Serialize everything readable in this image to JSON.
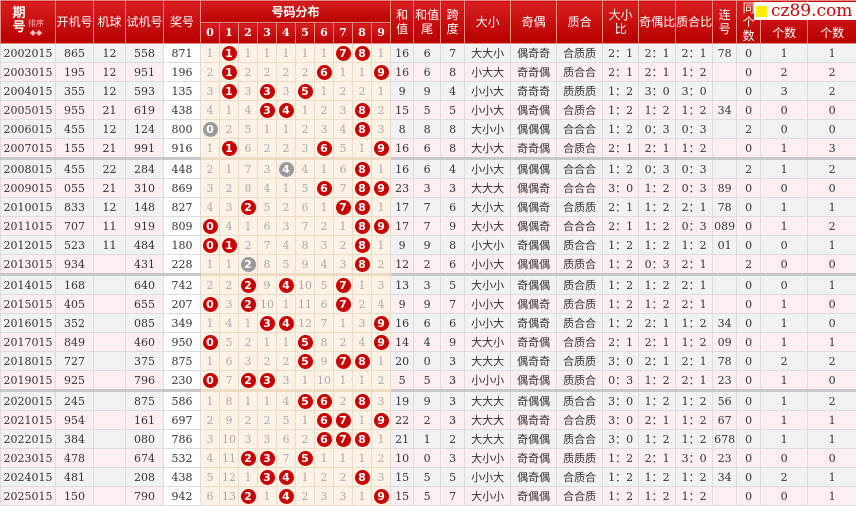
{
  "header": {
    "period": "期号",
    "sort": "排序",
    "kaiji": "开机号",
    "jiqiu": "机球",
    "shiji": "试机号",
    "jiang": "奖号",
    "dist": "号码分布",
    "digits": [
      "0",
      "1",
      "2",
      "3",
      "4",
      "5",
      "6",
      "7",
      "8",
      "9"
    ],
    "sum": "和值",
    "tail": "和值尾",
    "span": "跨度",
    "dx": "大小",
    "jo": "奇偶",
    "zh": "质合",
    "dxb": "大小比",
    "job": "奇偶比",
    "zhb": "质合比",
    "lian": "连号",
    "tong": "同",
    "count": "个数",
    "count2": "个数",
    "count3": "个数"
  },
  "logo": "cz89.com",
  "colors": {
    "header": "#c00000",
    "hit": "#c80000",
    "repeat": "#9a9a9a"
  },
  "rows": [
    {
      "p": "2002015",
      "k": "865",
      "q": "12",
      "s": "558",
      "j": "871",
      "d": [
        "1",
        "H",
        "1",
        "1",
        "1",
        "1",
        "1",
        "H",
        "H",
        "1"
      ],
      "v": [
        "16",
        "6",
        "7",
        "大大小",
        "偶奇奇",
        "合质质",
        "2：1",
        "2：1",
        "2：1",
        "78",
        "0",
        "1",
        "1"
      ]
    },
    {
      "p": "2003015",
      "k": "195",
      "q": "12",
      "s": "951",
      "j": "196",
      "d": [
        "2",
        "H",
        "2",
        "2",
        "2",
        "2",
        "H",
        "1",
        "1",
        "H"
      ],
      "v": [
        "16",
        "6",
        "8",
        "小大大",
        "奇奇偶",
        "质合合",
        "2：1",
        "2：1",
        "1：2",
        "",
        "0",
        "2",
        "2"
      ]
    },
    {
      "p": "2004015",
      "k": "355",
      "q": "12",
      "s": "593",
      "j": "135",
      "d": [
        "3",
        "H",
        "3",
        "H",
        "3",
        "H",
        "1",
        "2",
        "2",
        "1"
      ],
      "v": [
        "9",
        "9",
        "4",
        "小小大",
        "奇奇奇",
        "质质质",
        "1：2",
        "3：0",
        "3：0",
        "",
        "0",
        "3",
        "2"
      ]
    },
    {
      "p": "2005015",
      "k": "955",
      "q": "21",
      "s": "619",
      "j": "438",
      "d": [
        "4",
        "1",
        "4",
        "H",
        "H",
        "1",
        "2",
        "3",
        "H",
        "2"
      ],
      "v": [
        "15",
        "5",
        "5",
        "小小大",
        "偶奇偶",
        "合质合",
        "1：2",
        "1：2",
        "1：2",
        "34",
        "0",
        "0",
        "0"
      ]
    },
    {
      "p": "2006015",
      "k": "455",
      "q": "12",
      "s": "124",
      "j": "800",
      "d": [
        "G",
        "2",
        "5",
        "1",
        "1",
        "2",
        "3",
        "4",
        "H",
        "3"
      ],
      "v": [
        "8",
        "8",
        "8",
        "大小小",
        "偶偶偶",
        "合合合",
        "1：2",
        "0：3",
        "0：3",
        "",
        "2",
        "0",
        "0"
      ]
    },
    {
      "p": "2007015",
      "k": "155",
      "q": "21",
      "s": "991",
      "j": "916",
      "d": [
        "1",
        "H",
        "6",
        "2",
        "2",
        "3",
        "H",
        "5",
        "1",
        "H"
      ],
      "v": [
        "16",
        "6",
        "8",
        "大小大",
        "奇奇偶",
        "合质合",
        "2：1",
        "2：1",
        "1：2",
        "",
        "0",
        "1",
        "3"
      ]
    },
    {
      "p": "2008015",
      "k": "455",
      "q": "22",
      "s": "284",
      "j": "448",
      "d": [
        "2",
        "1",
        "7",
        "3",
        "G",
        "4",
        "1",
        "6",
        "H",
        "1"
      ],
      "v": [
        "16",
        "6",
        "4",
        "小小大",
        "偶偶偶",
        "合合合",
        "1：2",
        "0：3",
        "0：3",
        "",
        "2",
        "1",
        "2"
      ]
    },
    {
      "p": "2009015",
      "k": "055",
      "q": "21",
      "s": "310",
      "j": "869",
      "d": [
        "3",
        "2",
        "8",
        "4",
        "1",
        "5",
        "H",
        "7",
        "H",
        "H"
      ],
      "v": [
        "23",
        "3",
        "3",
        "大大大",
        "偶偶奇",
        "合合合",
        "3：0",
        "1：2",
        "0：3",
        "89",
        "0",
        "0",
        "0"
      ]
    },
    {
      "p": "2010015",
      "k": "833",
      "q": "12",
      "s": "148",
      "j": "827",
      "d": [
        "4",
        "3",
        "H",
        "5",
        "2",
        "6",
        "1",
        "H",
        "H",
        "1"
      ],
      "v": [
        "17",
        "7",
        "6",
        "大小大",
        "偶偶奇",
        "合质质",
        "2：1",
        "1：2",
        "2：1",
        "78",
        "0",
        "1",
        "1"
      ]
    },
    {
      "p": "2011015",
      "k": "707",
      "q": "11",
      "s": "919",
      "j": "809",
      "d": [
        "H",
        "4",
        "1",
        "6",
        "3",
        "7",
        "2",
        "1",
        "H",
        "H"
      ],
      "v": [
        "17",
        "7",
        "9",
        "大小大",
        "偶偶奇",
        "合合合",
        "2：1",
        "1：2",
        "0：3",
        "089",
        "0",
        "1",
        "2"
      ]
    },
    {
      "p": "2012015",
      "k": "523",
      "q": "11",
      "s": "484",
      "j": "180",
      "d": [
        "H",
        "H",
        "2",
        "7",
        "4",
        "8",
        "3",
        "2",
        "H",
        "1"
      ],
      "v": [
        "9",
        "9",
        "8",
        "小大小",
        "奇偶偶",
        "质合合",
        "1：2",
        "1：2",
        "1：2",
        "01",
        "0",
        "0",
        "1"
      ]
    },
    {
      "p": "2013015",
      "k": "934",
      "q": "",
      "s": "431",
      "j": "228",
      "d": [
        "1",
        "1",
        "G",
        "8",
        "5",
        "9",
        "4",
        "3",
        "H",
        "2"
      ],
      "v": [
        "12",
        "2",
        "6",
        "小小大",
        "偶偶偶",
        "质质合",
        "1：2",
        "0：3",
        "2：1",
        "",
        "2",
        "0",
        "0"
      ]
    },
    {
      "p": "2014015",
      "k": "168",
      "q": "",
      "s": "640",
      "j": "742",
      "d": [
        "2",
        "2",
        "H",
        "9",
        "H",
        "10",
        "5",
        "H",
        "1",
        "3"
      ],
      "v": [
        "13",
        "3",
        "5",
        "大小小",
        "奇偶偶",
        "质合质",
        "1：2",
        "1：2",
        "2：1",
        "",
        "0",
        "0",
        "1"
      ]
    },
    {
      "p": "2015015",
      "k": "405",
      "q": "",
      "s": "655",
      "j": "207",
      "d": [
        "H",
        "3",
        "H",
        "10",
        "1",
        "11",
        "6",
        "H",
        "2",
        "4"
      ],
      "v": [
        "9",
        "9",
        "7",
        "小小大",
        "偶偶奇",
        "质合质",
        "1：2",
        "1：2",
        "2：1",
        "",
        "0",
        "1",
        "0"
      ]
    },
    {
      "p": "2016015",
      "k": "352",
      "q": "",
      "s": "085",
      "j": "349",
      "d": [
        "1",
        "4",
        "1",
        "H",
        "H",
        "12",
        "7",
        "1",
        "3",
        "H"
      ],
      "v": [
        "16",
        "6",
        "6",
        "小小大",
        "奇偶奇",
        "质合合",
        "1：2",
        "2：1",
        "1：2",
        "34",
        "0",
        "1",
        "0"
      ]
    },
    {
      "p": "2017015",
      "k": "849",
      "q": "",
      "s": "460",
      "j": "950",
      "d": [
        "H",
        "5",
        "2",
        "1",
        "1",
        "H",
        "8",
        "2",
        "4",
        "H"
      ],
      "v": [
        "14",
        "4",
        "9",
        "大大小",
        "奇奇偶",
        "合质合",
        "2：1",
        "2：1",
        "1：2",
        "09",
        "0",
        "1",
        "1"
      ]
    },
    {
      "p": "2018015",
      "k": "727",
      "q": "",
      "s": "375",
      "j": "875",
      "d": [
        "1",
        "6",
        "3",
        "2",
        "2",
        "H",
        "9",
        "H",
        "H",
        "1"
      ],
      "v": [
        "20",
        "0",
        "3",
        "大大大",
        "偶奇奇",
        "合质质",
        "3：0",
        "2：1",
        "2：1",
        "78",
        "0",
        "2",
        "2"
      ]
    },
    {
      "p": "2019015",
      "k": "925",
      "q": "",
      "s": "796",
      "j": "230",
      "d": [
        "H",
        "7",
        "H",
        "H",
        "3",
        "1",
        "10",
        "1",
        "1",
        "2"
      ],
      "v": [
        "5",
        "5",
        "3",
        "小小小",
        "偶奇偶",
        "质质合",
        "0：3",
        "1：2",
        "2：1",
        "23",
        "0",
        "1",
        "0"
      ]
    },
    {
      "p": "2020015",
      "k": "245",
      "q": "",
      "s": "875",
      "j": "586",
      "d": [
        "1",
        "8",
        "1",
        "1",
        "4",
        "H",
        "H",
        "2",
        "H",
        "3"
      ],
      "v": [
        "19",
        "9",
        "3",
        "大大大",
        "奇偶偶",
        "质合合",
        "3：0",
        "1：2",
        "1：2",
        "56",
        "0",
        "1",
        "2"
      ]
    },
    {
      "p": "2021015",
      "k": "954",
      "q": "",
      "s": "161",
      "j": "697",
      "d": [
        "2",
        "9",
        "2",
        "2",
        "5",
        "1",
        "H",
        "H",
        "1",
        "H"
      ],
      "v": [
        "22",
        "2",
        "3",
        "大大大",
        "偶奇奇",
        "合合质",
        "3：0",
        "2：1",
        "1：2",
        "67",
        "0",
        "1",
        "1"
      ]
    },
    {
      "p": "2022015",
      "k": "384",
      "q": "",
      "s": "080",
      "j": "786",
      "d": [
        "3",
        "10",
        "3",
        "3",
        "6",
        "2",
        "H",
        "H",
        "H",
        "1"
      ],
      "v": [
        "21",
        "1",
        "2",
        "大大大",
        "奇偶偶",
        "质合合",
        "3：0",
        "1：2",
        "1：2",
        "678",
        "0",
        "1",
        "1"
      ]
    },
    {
      "p": "2023015",
      "k": "478",
      "q": "",
      "s": "674",
      "j": "532",
      "d": [
        "4",
        "11",
        "H",
        "H",
        "7",
        "H",
        "1",
        "1",
        "1",
        "2"
      ],
      "v": [
        "10",
        "0",
        "3",
        "大小小",
        "奇奇偶",
        "质质质",
        "1：2",
        "2：1",
        "3：0",
        "23",
        "0",
        "0",
        "0"
      ]
    },
    {
      "p": "2024015",
      "k": "481",
      "q": "",
      "s": "208",
      "j": "438",
      "d": [
        "5",
        "12",
        "1",
        "H",
        "H",
        "1",
        "2",
        "2",
        "H",
        "3"
      ],
      "v": [
        "15",
        "5",
        "5",
        "小小大",
        "偶奇偶",
        "合质合",
        "1：2",
        "1：2",
        "1：2",
        "34",
        "0",
        "2",
        "1"
      ]
    },
    {
      "p": "2025015",
      "k": "150",
      "q": "",
      "s": "790",
      "j": "942",
      "d": [
        "6",
        "13",
        "H",
        "1",
        "H",
        "2",
        "3",
        "3",
        "1",
        "H"
      ],
      "v": [
        "15",
        "5",
        "7",
        "大小小",
        "奇偶偶",
        "合合质",
        "1：2",
        "1：2",
        "1：2",
        "",
        "0",
        "0",
        "1"
      ]
    }
  ]
}
